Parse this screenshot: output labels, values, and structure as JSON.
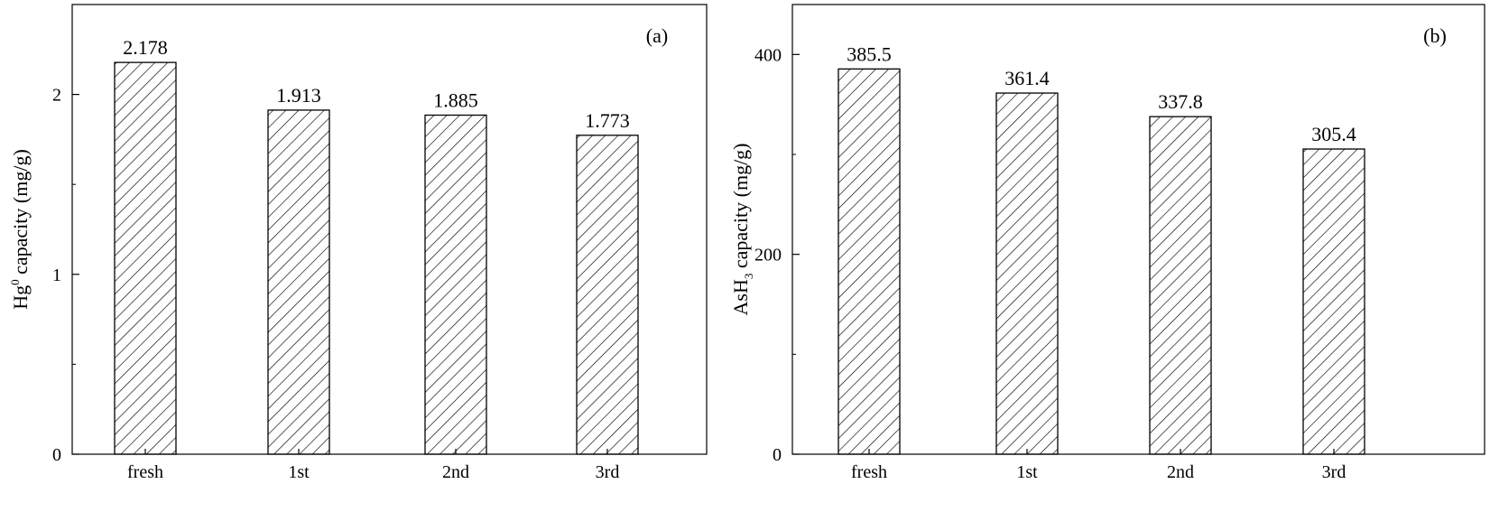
{
  "chart_data": [
    {
      "type": "bar",
      "panel_label": "(a)",
      "categories": [
        "fresh",
        "1st",
        "2nd",
        "3rd"
      ],
      "values": [
        2.178,
        1.913,
        1.885,
        1.773
      ],
      "value_labels": [
        "2.178",
        "1.913",
        "1.885",
        "1.773"
      ],
      "ylabel": {
        "base": "Hg",
        "sup": "0",
        "rest": " capacity (mg/g)"
      },
      "ylim": [
        0,
        2.5
      ],
      "yticks": [
        0,
        1,
        2
      ],
      "ytick_labels": [
        "0",
        "1",
        "2"
      ],
      "minor_yticks": [
        0.5,
        1.5
      ],
      "bar_fill": "hatched",
      "grid": false
    },
    {
      "type": "bar",
      "panel_label": "(b)",
      "categories": [
        "fresh",
        "1st",
        "2nd",
        "3rd"
      ],
      "values": [
        385.5,
        361.4,
        337.8,
        305.4
      ],
      "value_labels": [
        "385.5",
        "361.4",
        "337.8",
        "305.4"
      ],
      "ylabel": {
        "base": "AsH",
        "sub": "3",
        "rest": " capacity (mg/g)"
      },
      "ylim": [
        0,
        450
      ],
      "yticks": [
        0,
        200,
        400
      ],
      "ytick_labels": [
        "0",
        "200",
        "400"
      ],
      "minor_yticks": [
        100,
        300
      ],
      "bar_fill": "hatched",
      "grid": false
    }
  ],
  "colors": {
    "axis": "#000000",
    "bar_stroke": "#000000",
    "hatch": "#000000"
  }
}
